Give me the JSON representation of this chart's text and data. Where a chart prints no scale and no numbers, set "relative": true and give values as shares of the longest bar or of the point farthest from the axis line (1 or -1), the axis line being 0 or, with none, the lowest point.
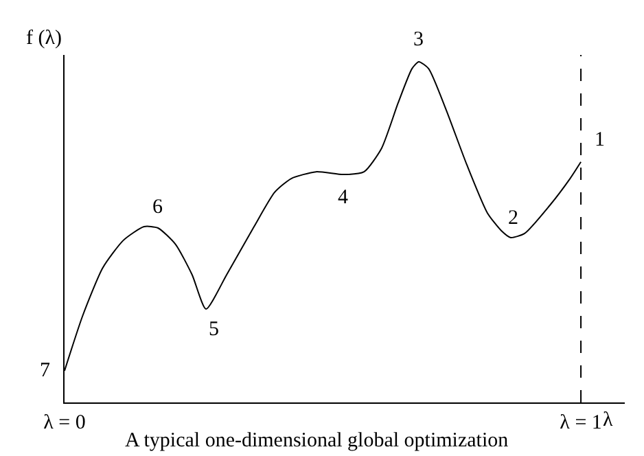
{
  "chart_data": {
    "type": "line",
    "relative": true,
    "xlabel": "λ",
    "ylabel": "f (λ)",
    "x": [
      0,
      0.035,
      0.074,
      0.114,
      0.154,
      0.181,
      0.215,
      0.247,
      0.274,
      0.314,
      0.367,
      0.407,
      0.439,
      0.487,
      0.54,
      0.58,
      0.614,
      0.646,
      0.673,
      0.686,
      0.705,
      0.739,
      0.779,
      0.819,
      0.846,
      0.864,
      0.891,
      0.939,
      0.979,
      1
    ],
    "series": [
      {
        "color": "#000000",
        "values": [
          0.093,
          0.254,
          0.395,
          0.476,
          0.516,
          0.512,
          0.464,
          0.375,
          0.274,
          0.375,
          0.516,
          0.617,
          0.657,
          0.677,
          0.669,
          0.677,
          0.746,
          0.879,
          0.98,
          1,
          0.98,
          0.859,
          0.698,
          0.556,
          0.504,
          0.484,
          0.496,
          0.577,
          0.657,
          0.706
        ]
      }
    ],
    "xlim": [
      0,
      1.085
    ],
    "xticks": [
      {
        "value": 0,
        "label": "λ = 0"
      },
      {
        "value": 1,
        "label": "λ = 1"
      }
    ],
    "ref_lines": [
      {
        "axis": "x",
        "value": 1,
        "line_style": "dashed",
        "color": "#000000"
      }
    ],
    "annotations": [
      {
        "text": "7",
        "x": 0,
        "y": 0.093
      },
      {
        "text": "6",
        "x": 0.181,
        "y": 0.512
      },
      {
        "text": "5",
        "x": 0.274,
        "y": 0.274
      },
      {
        "text": "4",
        "x": 0.54,
        "y": 0.669
      },
      {
        "text": "3",
        "x": 0.686,
        "y": 1
      },
      {
        "text": "2",
        "x": 0.864,
        "y": 0.484
      },
      {
        "text": "1",
        "x": 1,
        "y": 0.706
      },
      "A typical one-dimensional global optimization"
    ],
    "marker": "none",
    "line_style": "solid"
  }
}
